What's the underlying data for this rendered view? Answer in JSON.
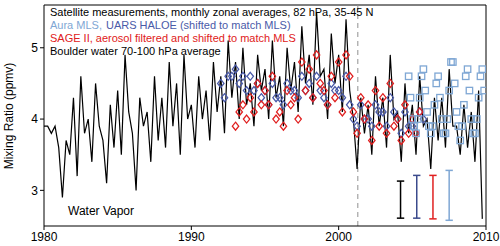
{
  "chart_data": {
    "type": "line",
    "title": "Satellite measurements, monthly zonal averages, 82 hPa, 35-45 N",
    "ylabel": "Mixing Ratio (ppmv)",
    "annotation": "Water Vapor",
    "xlim": [
      1980,
      2010
    ],
    "xticks": [
      1980,
      1990,
      2000,
      2010
    ],
    "ylim": [
      2.5,
      5.6
    ],
    "yticks": [
      3,
      4,
      5
    ],
    "legend": "upper left",
    "series": [
      {
        "name": "Boulder water 70-100 hPa average",
        "color": "#000000",
        "type": "line",
        "line_style": "solid",
        "x": [
          1980,
          1980.25,
          1980.5,
          1980.75,
          1981,
          1981.25,
          1981.5,
          1981.75,
          1982,
          1982.25,
          1982.5,
          1982.75,
          1983,
          1983.25,
          1983.5,
          1983.75,
          1984,
          1984.25,
          1984.5,
          1984.75,
          1985,
          1985.25,
          1985.5,
          1985.75,
          1986,
          1986.25,
          1986.5,
          1986.75,
          1987,
          1987.25,
          1987.5,
          1987.75,
          1988,
          1988.25,
          1988.5,
          1988.75,
          1989,
          1989.25,
          1989.5,
          1989.75,
          1990,
          1990.25,
          1990.5,
          1990.75,
          1991,
          1991.25,
          1991.5,
          1991.75,
          1992,
          1992.25,
          1992.5,
          1992.75,
          1993,
          1993.25,
          1993.5,
          1993.75,
          1994,
          1994.25,
          1994.5,
          1994.75,
          1995,
          1995.25,
          1995.5,
          1995.75,
          1996,
          1996.25,
          1996.5,
          1996.75,
          1997,
          1997.25,
          1997.5,
          1997.75,
          1998,
          1998.25,
          1998.5,
          1998.75,
          1999,
          1999.25,
          1999.5,
          1999.75,
          2000,
          2000.25,
          2000.5,
          2000.75,
          2001,
          2001.25,
          2001.5,
          2001.75,
          2002,
          2002.25,
          2002.5,
          2002.75,
          2003,
          2003.25,
          2003.5,
          2003.75,
          2004,
          2004.25,
          2004.5,
          2004.75,
          2005,
          2005.25,
          2005.5,
          2005.75,
          2006,
          2006.25,
          2006.5,
          2006.75,
          2007,
          2007.25,
          2007.5,
          2007.75,
          2008,
          2008.25,
          2008.5,
          2008.75,
          2009,
          2009.25,
          2009.5,
          2009.75
        ],
        "values": [
          3.9,
          3.9,
          3.8,
          3.9,
          3.6,
          2.9,
          3.7,
          3.5,
          4.3,
          3.2,
          4.6,
          3.8,
          4.0,
          3.4,
          4.5,
          3.9,
          3.7,
          3.1,
          4.2,
          3.6,
          4.4,
          3.5,
          4.9,
          4.1,
          3.8,
          3.0,
          4.3,
          3.9,
          4.1,
          3.4,
          4.6,
          3.7,
          4.3,
          3.6,
          4.8,
          3.9,
          4.5,
          3.5,
          4.9,
          4.0,
          4.2,
          3.6,
          4.6,
          4.0,
          4.4,
          3.7,
          4.8,
          4.1,
          4.6,
          3.8,
          5.1,
          4.3,
          4.8,
          4.0,
          5.0,
          4.2,
          4.5,
          3.9,
          4.9,
          4.4,
          4.7,
          4.0,
          5.1,
          4.3,
          4.6,
          3.9,
          5.0,
          4.4,
          4.8,
          4.1,
          5.3,
          4.5,
          4.9,
          4.2,
          5.5,
          4.6,
          4.7,
          4.0,
          5.2,
          4.5,
          4.9,
          4.1,
          5.4,
          4.4,
          4.0,
          3.3,
          4.3,
          3.8,
          4.2,
          3.5,
          4.6,
          3.9,
          4.3,
          3.6,
          4.9,
          4.0,
          4.1,
          3.4,
          4.5,
          3.8,
          4.2,
          3.5,
          4.6,
          3.9,
          4.0,
          3.3,
          4.3,
          3.7,
          4.3,
          3.6,
          4.7,
          3.9,
          3.9,
          3.5,
          4.2,
          3.6,
          4.1,
          3.4,
          4.4,
          2.6
        ]
      },
      {
        "name": "UARS HALOE (shifted to match MLS)",
        "color": "#4a5aa8",
        "type": "scatter",
        "marker": "diamond",
        "x": [
          1992,
          1992.25,
          1992.5,
          1992.75,
          1993,
          1993.25,
          1993.5,
          1993.75,
          1994,
          1994.25,
          1994.5,
          1994.75,
          1995,
          1995.25,
          1995.5,
          1995.75,
          1996,
          1996.25,
          1996.5,
          1996.75,
          1997,
          1997.25,
          1997.5,
          1997.75,
          1998,
          1998.25,
          1998.5,
          1998.75,
          1999,
          1999.25,
          1999.5,
          1999.75,
          2000,
          2000.25,
          2000.5,
          2000.75,
          2001,
          2001.25,
          2001.5,
          2001.75,
          2002,
          2002.25,
          2002.5,
          2002.75,
          2003,
          2003.25,
          2003.5,
          2003.75,
          2004,
          2004.25,
          2004.5,
          2004.75,
          2005,
          2005.25,
          2005.5,
          2005.75
        ],
        "values": [
          4.5,
          4.3,
          4.6,
          4.6,
          4.7,
          4.5,
          4.6,
          4.4,
          4.6,
          4.4,
          4.5,
          4.3,
          4.4,
          4.2,
          4.5,
          4.3,
          4.3,
          4.2,
          4.5,
          4.4,
          4.4,
          4.3,
          4.6,
          4.4,
          4.5,
          4.3,
          4.6,
          4.4,
          4.3,
          4.2,
          4.5,
          4.4,
          4.4,
          4.3,
          4.6,
          4.2,
          4.0,
          3.9,
          4.2,
          4.0,
          4.0,
          3.9,
          4.2,
          4.1,
          4.1,
          3.9,
          4.3,
          4.1,
          4.0,
          3.8,
          4.1,
          3.9,
          3.9,
          3.8,
          4.1,
          4.0
        ]
      },
      {
        "name": "SAGE II, aerosol filtered and shifted to match MLS",
        "color": "#e02020",
        "type": "scatter",
        "marker": "diamond",
        "x": [
          1993,
          1993.25,
          1993.5,
          1993.75,
          1994,
          1994.25,
          1994.5,
          1994.75,
          1995,
          1995.25,
          1995.5,
          1995.75,
          1996,
          1996.25,
          1996.5,
          1996.75,
          1997,
          1997.25,
          1997.5,
          1997.75,
          1998,
          1998.25,
          1998.5,
          1998.75,
          1999,
          1999.25,
          1999.5,
          1999.75,
          2000,
          2000.25,
          2000.5,
          2000.75,
          2001,
          2001.25,
          2001.5,
          2001.75,
          2002,
          2002.25,
          2002.5,
          2002.75,
          2003,
          2003.25,
          2003.5,
          2003.75,
          2004,
          2004.25,
          2004.5,
          2004.75,
          2005,
          2005.25,
          2005.5
        ],
        "values": [
          3.9,
          4.1,
          4.2,
          4.0,
          4.3,
          4.1,
          4.5,
          4.2,
          4.4,
          4.2,
          4.6,
          4.0,
          4.1,
          3.9,
          4.4,
          4.2,
          4.3,
          4.0,
          4.8,
          4.4,
          4.7,
          4.3,
          4.9,
          4.5,
          4.4,
          4.2,
          4.6,
          4.3,
          4.8,
          4.1,
          4.9,
          4.6,
          4.1,
          3.8,
          4.3,
          4.0,
          4.2,
          3.7,
          4.4,
          3.9,
          4.3,
          3.8,
          4.5,
          3.9,
          4.0,
          3.7,
          4.2,
          3.8,
          4.0,
          3.8,
          4.1
        ]
      },
      {
        "name": "Aura MLS,",
        "color": "#7fa7d4",
        "type": "scatter",
        "marker": "square",
        "x": [
          2004.75,
          2004.875,
          2005,
          2005.125,
          2005.25,
          2005.375,
          2005.5,
          2005.625,
          2005.75,
          2005.875,
          2006,
          2006.125,
          2006.25,
          2006.375,
          2006.5,
          2006.625,
          2006.75,
          2006.875,
          2007,
          2007.125,
          2007.25,
          2007.375,
          2007.5,
          2007.625,
          2007.75,
          2007.875,
          2008,
          2008.125,
          2008.25,
          2008.375,
          2008.5,
          2008.625,
          2008.75,
          2008.875,
          2009,
          2009.125,
          2009.25,
          2009.375,
          2009.5,
          2009.625,
          2009.75,
          2009.875
        ],
        "values": [
          4.6,
          4.3,
          4.0,
          3.9,
          3.8,
          4.0,
          4.3,
          4.6,
          4.7,
          4.4,
          4.1,
          3.9,
          3.8,
          3.9,
          4.2,
          4.5,
          4.6,
          4.3,
          4.0,
          3.8,
          3.8,
          4.0,
          4.4,
          4.8,
          4.8,
          4.5,
          4.1,
          3.9,
          3.7,
          3.9,
          4.2,
          4.6,
          4.7,
          4.4,
          4.0,
          3.8,
          3.8,
          4.0,
          4.3,
          4.6,
          4.7,
          4.4
        ]
      }
    ],
    "vertical_line": {
      "x": 2001.3,
      "line_style": "dashed",
      "color": "#909090"
    },
    "error_bars": [
      {
        "x": 2004.2,
        "low": 2.61,
        "high": 3.13,
        "color": "#000000"
      },
      {
        "x": 2005.3,
        "low": 2.61,
        "high": 3.21,
        "color": "#3b4a8c"
      },
      {
        "x": 2006.4,
        "low": 2.6,
        "high": 3.21,
        "color": "#e02020"
      },
      {
        "x": 2007.5,
        "low": 2.58,
        "high": 3.28,
        "color": "#7fa7d4"
      }
    ]
  }
}
